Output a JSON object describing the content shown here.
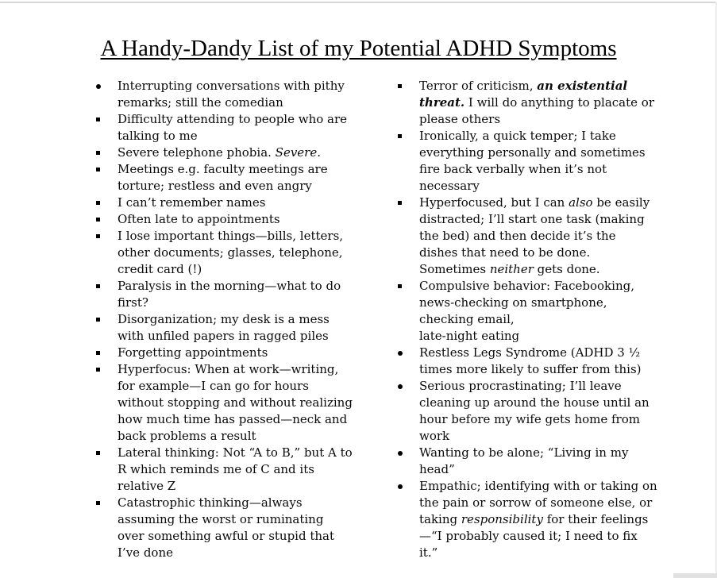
{
  "page": {
    "title": "A Handy-Dandy List of my Potential ADHD Symptoms"
  },
  "columns": [
    {
      "name": "left",
      "items": [
        {
          "bullet": "disc",
          "segments": [
            {
              "text": "Interrupting conversations with pithy remarks; still the comedian",
              "style": "normal"
            }
          ]
        },
        {
          "bullet": "square",
          "segments": [
            {
              "text": "Difficulty attending to people who are talking to me",
              "style": "normal"
            }
          ]
        },
        {
          "bullet": "square",
          "segments": [
            {
              "text": "Severe telephone phobia. ",
              "style": "normal"
            },
            {
              "text": "Severe.",
              "style": "italic"
            }
          ]
        },
        {
          "bullet": "square",
          "segments": [
            {
              "text": "Meetings e.g. faculty meetings are torture; restless and even angry",
              "style": "normal"
            }
          ]
        },
        {
          "bullet": "square",
          "segments": [
            {
              "text": "I can’t remember names",
              "style": "normal"
            }
          ]
        },
        {
          "bullet": "square",
          "segments": [
            {
              "text": "Often late to appointments",
              "style": "normal"
            }
          ]
        },
        {
          "bullet": "square",
          "segments": [
            {
              "text": "I lose important things—bills, letters, other documents; glasses, telephone, credit card (!)",
              "style": "normal"
            }
          ]
        },
        {
          "bullet": "square",
          "segments": [
            {
              "text": "Paralysis in the morning—what to do first?",
              "style": "normal"
            }
          ]
        },
        {
          "bullet": "square",
          "segments": [
            {
              "text": "Disorganization; my desk is a mess with unfiled papers in ragged piles",
              "style": "normal"
            }
          ]
        },
        {
          "bullet": "square",
          "segments": [
            {
              "text": "Forgetting appointments",
              "style": "normal"
            }
          ]
        },
        {
          "bullet": "square",
          "segments": [
            {
              "text": "Hyperfocus: When at work—writing, for example—I can go for hours without stopping and without realizing how much time has passed—neck and back problems a result",
              "style": "normal"
            }
          ]
        },
        {
          "bullet": "square",
          "segments": [
            {
              "text": "Lateral thinking: Not “A to B,” but A to R which reminds me of C and its relative Z",
              "style": "normal"
            }
          ]
        },
        {
          "bullet": "square",
          "segments": [
            {
              "text": "Catastrophic thinking—always assuming the worst or ruminating over something awful or stupid that I’ve done",
              "style": "normal"
            }
          ]
        }
      ]
    },
    {
      "name": "right",
      "items": [
        {
          "bullet": "square",
          "segments": [
            {
              "text": "Terror of criticism, ",
              "style": "normal"
            },
            {
              "text": "an existential threat.",
              "style": "bold-italic"
            },
            {
              "text": " I will do anything to placate or please others",
              "style": "normal"
            }
          ]
        },
        {
          "bullet": "square",
          "segments": [
            {
              "text": "Ironically, a quick temper; I take everything personally and sometimes fire back verbally when it’s not necessary",
              "style": "normal"
            }
          ]
        },
        {
          "bullet": "square",
          "segments": [
            {
              "text": "Hyperfocused, but I can ",
              "style": "normal"
            },
            {
              "text": "also",
              "style": "italic"
            },
            {
              "text": " be easily distracted; I’ll start one task (making the bed) and then decide it’s the dishes that need to be done. Sometimes ",
              "style": "normal"
            },
            {
              "text": "neither",
              "style": "italic"
            },
            {
              "text": " gets done.",
              "style": "normal"
            }
          ]
        },
        {
          "bullet": "square",
          "segments": [
            {
              "text": "Compulsive behavior: Facebooking, news-checking on smartphone, checking email,\nlate-night eating",
              "style": "normal"
            }
          ]
        },
        {
          "bullet": "disc",
          "segments": [
            {
              "text": "Restless Legs Syndrome (ADHD 3 ½ times more likely to suffer from this)",
              "style": "normal"
            }
          ]
        },
        {
          "bullet": "disc",
          "segments": [
            {
              "text": "Serious procrastinating; I’ll leave cleaning up around the house until an hour before my wife gets home from work",
              "style": "normal"
            }
          ]
        },
        {
          "bullet": "disc",
          "segments": [
            {
              "text": "Wanting to be alone; “Living in my head”",
              "style": "normal"
            }
          ]
        },
        {
          "bullet": "disc",
          "segments": [
            {
              "text": "Empathic; identifying with or taking on the pain or sorrow of someone else, or taking ",
              "style": "normal"
            },
            {
              "text": "responsibility",
              "style": "italic"
            },
            {
              "text": " for their feelings—“I probably caused it; I need to fix it.”",
              "style": "normal"
            }
          ]
        }
      ]
    }
  ]
}
